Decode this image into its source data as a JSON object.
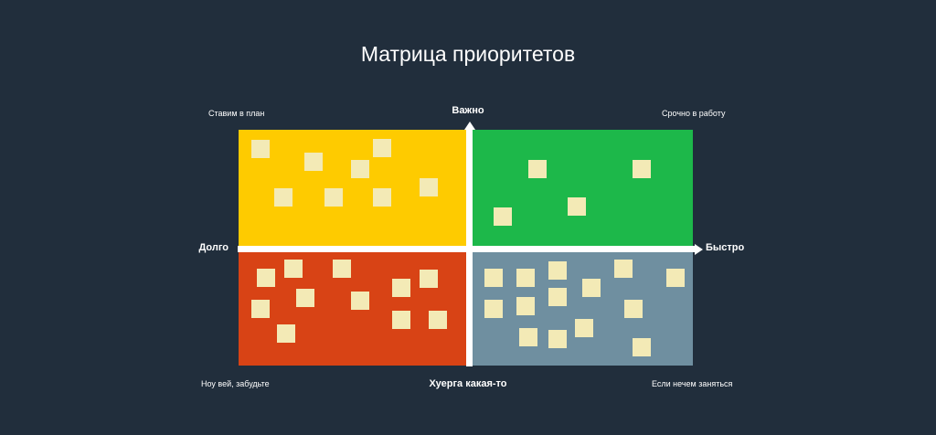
{
  "title": "Матрица приоритетов",
  "axes": {
    "up": "Важно",
    "down": "Хуерга какая-то",
    "left": "Долго",
    "right": "Быстро"
  },
  "corners": {
    "top_left": "Ставим в план",
    "top_right": "Срочно в работу",
    "bottom_left": "Ноу вей, забудьте",
    "bottom_right": "Если нечем заняться"
  },
  "colors": {
    "background": "#212e3c",
    "top_left": "#fecb00",
    "top_right": "#1db84a",
    "bottom_left": "#d84315",
    "bottom_right": "#6f8fa0",
    "note": "#f3eab6",
    "axis": "#ffffff"
  }
}
